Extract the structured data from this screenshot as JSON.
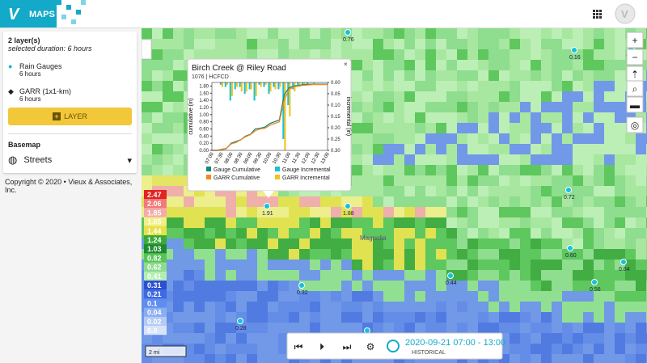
{
  "header": {
    "title": "MAPS"
  },
  "sidebar": {
    "layer_count": "2 layer(s)",
    "duration": "selected duration: 6 hours",
    "layers": [
      {
        "name": "Rain Gauges",
        "duration": "6 hours"
      },
      {
        "name": "GARR (1x1-km)",
        "duration": "6 hours"
      }
    ],
    "add_button": "LAYER",
    "basemap_title": "Basemap",
    "basemap": "Streets",
    "copyright": "Copyright © 2020 • Vieux & Associates, Inc."
  },
  "map": {
    "legend": [
      {
        "label": "2.47",
        "color": "#e32222"
      },
      {
        "label": "2.06",
        "color": "#f07a7a"
      },
      {
        "label": "1.85",
        "color": "#f5aaaa"
      },
      {
        "label": "1.65",
        "color": "#f2ef86"
      },
      {
        "label": "1.44",
        "color": "#e6e24a"
      },
      {
        "label": "1.24",
        "color": "#3aa83a"
      },
      {
        "label": "1.03",
        "color": "#1f8a2e"
      },
      {
        "label": "0.82",
        "color": "#58c458"
      },
      {
        "label": "0.62",
        "color": "#8ddc8d"
      },
      {
        "label": "0.41",
        "color": "#b2eeb2"
      },
      {
        "label": "0.31",
        "color": "#2c4fd0"
      },
      {
        "label": "0.21",
        "color": "#3f6ae0"
      },
      {
        "label": "0.1",
        "color": "#5f8cef"
      },
      {
        "label": "0.04",
        "color": "#8aaef2"
      },
      {
        "label": "0.02",
        "color": "#b5cbf5"
      },
      {
        "label": "0.0",
        "color": "#d7e3f8"
      }
    ],
    "gauges": [
      "0.76",
      "0.16",
      "0.32",
      "1.91",
      "1.88",
      "0.72",
      "0.60",
      "0.64",
      "0.56",
      "0.44",
      "0.32",
      "0.28"
    ],
    "scale": "2 mi",
    "place": "Magnolia"
  },
  "popup": {
    "title": "Birch Creek @ Riley Road",
    "subtitle": "1076 | HCFCD",
    "chart_data": {
      "type": "bar-line",
      "y_label": "cumulative (in)",
      "y2_label": "incremental (in)",
      "categories": [
        "07:00",
        null,
        "07:30",
        null,
        "08:00",
        null,
        "08:30",
        null,
        "09:00",
        null,
        "09:30",
        null,
        "10:00",
        null,
        "10:30",
        null,
        "11:00",
        null,
        "11:30",
        null,
        "12:00",
        null,
        "12:30",
        null,
        "13:00"
      ],
      "ylim": [
        0,
        1.9
      ],
      "yticks": [
        {
          "value": 0,
          "label": "0.00"
        },
        {
          "value": 0.2,
          "label": "0.20"
        },
        {
          "value": 0.4,
          "label": "0.40"
        },
        {
          "value": 0.6,
          "label": "0.60"
        },
        {
          "value": 0.8,
          "label": "0.80"
        },
        {
          "value": 1,
          "label": "1.00"
        },
        {
          "value": 1.2,
          "label": "1.20"
        },
        {
          "value": 1.4,
          "label": "1.40"
        },
        {
          "value": 1.6,
          "label": "1.60"
        },
        {
          "value": 1.8,
          "label": "1.80"
        }
      ],
      "y2lim": [
        0,
        0.3
      ],
      "y2_inverted": true,
      "y2ticks": [
        {
          "value": 0,
          "label": "0.00"
        },
        {
          "value": 0.05,
          "label": "0.05"
        },
        {
          "value": 0.1,
          "label": "0.10"
        },
        {
          "value": 0.15,
          "label": "0.15"
        },
        {
          "value": 0.2,
          "label": "0.20"
        },
        {
          "value": 0.25,
          "label": "0.25"
        },
        {
          "value": 0.3,
          "label": "0.30"
        }
      ],
      "series": [
        {
          "name": "Gauge Cumulative",
          "color": "#16877a",
          "kind": "line",
          "values": [
            0,
            0,
            0.02,
            0.05,
            0.2,
            0.25,
            0.3,
            0.4,
            0.45,
            0.6,
            0.62,
            0.65,
            0.75,
            0.8,
            0.85,
            1.55,
            1.75,
            1.8,
            1.82,
            1.84,
            1.85,
            1.85,
            1.85,
            1.85,
            1.85
          ]
        },
        {
          "name": "Gauge Incremental",
          "color": "#19c2d6",
          "kind": "bar",
          "axis": "y2",
          "values": [
            0,
            0,
            0.01,
            0.02,
            0.08,
            0.03,
            0.02,
            0.05,
            0.03,
            0.08,
            0.01,
            0.02,
            0.05,
            0.02,
            0.03,
            0.25,
            0.1,
            0.03,
            0.01,
            0.01,
            0.01,
            0,
            0,
            0,
            0
          ]
        },
        {
          "name": "GARR Cumulative",
          "color": "#f5891f",
          "kind": "line",
          "values": [
            0,
            0,
            0.03,
            0.06,
            0.18,
            0.22,
            0.3,
            0.38,
            0.44,
            0.55,
            0.6,
            0.62,
            0.7,
            0.75,
            0.8,
            1.4,
            1.7,
            1.78,
            1.8,
            1.82,
            1.83,
            1.84,
            1.84,
            1.84,
            1.84
          ]
        },
        {
          "name": "GARR Incremental",
          "color": "#f2c41e",
          "kind": "bar",
          "axis": "y2",
          "values": [
            0,
            0,
            0.02,
            0.01,
            0.06,
            0.02,
            0.04,
            0.04,
            0.03,
            0.06,
            0.02,
            0.01,
            0.04,
            0.03,
            0.02,
            0.3,
            0.15,
            0.04,
            0.01,
            0.01,
            0,
            0.01,
            0,
            0,
            0
          ]
        }
      ]
    }
  },
  "controls": {
    "time": "2020-09-21 07:00 - 13:00",
    "mode": "HISTORICAL"
  }
}
